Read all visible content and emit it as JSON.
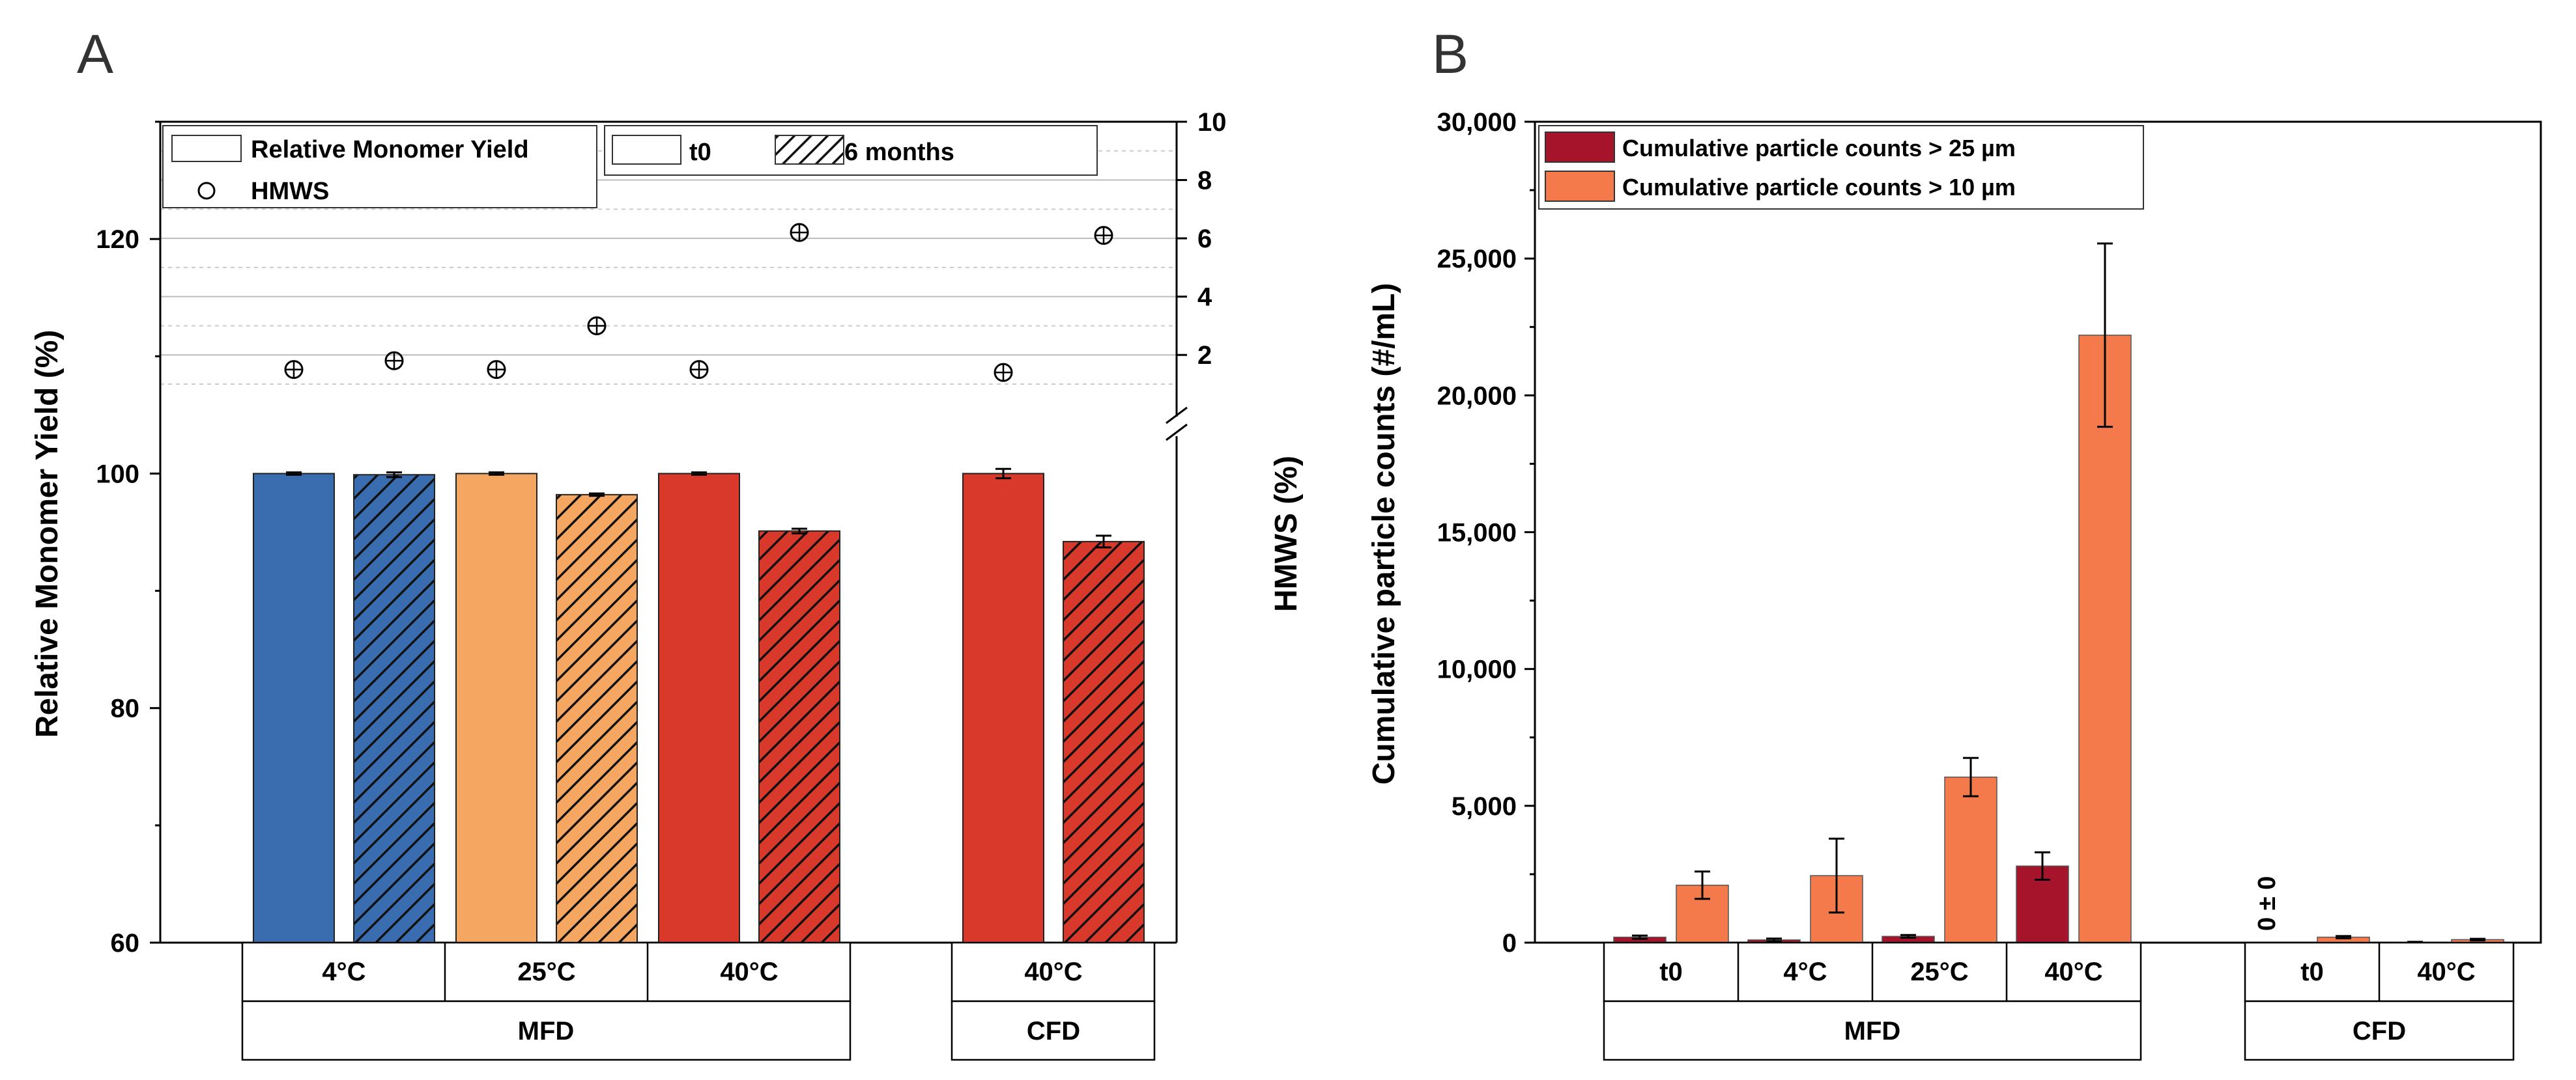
{
  "panel_a": {
    "letter": "A",
    "ylabel": "Relative Monomer Yield (%)",
    "y2label": "HMWS (%)",
    "yticks": [
      "60",
      "80",
      "100",
      "120"
    ],
    "y2ticks": [
      "2",
      "4",
      "6",
      "8",
      "10"
    ],
    "legend": {
      "bar_label": "Relative Monomer Yield",
      "marker_label": "HMWS",
      "t0_label": "t0",
      "month_label": "6 months"
    },
    "x_levels": {
      "temperatures": [
        "4°C",
        "25°C",
        "40°C",
        "40°C"
      ],
      "groups": [
        "MFD",
        "CFD"
      ]
    }
  },
  "panel_b": {
    "letter": "B",
    "ylabel": "Cumulative particle counts (#/mL)",
    "yticks": [
      "0",
      "5,000",
      "10,000",
      "15,000",
      "20,000",
      "25,000",
      "30,000"
    ],
    "legend": {
      "series_25": "Cumulative particle counts > 25 µm",
      "series_10": "Cumulative particle counts > 10 µm"
    },
    "annotation": "0 ± 0",
    "x_levels": {
      "conditions": [
        "t0",
        "4°C",
        "25°C",
        "40°C",
        "t0",
        "40°C"
      ],
      "groups": [
        "MFD",
        "CFD"
      ]
    }
  },
  "chart_data": [
    {
      "type": "bar",
      "title": "",
      "xlabel": "",
      "ylabel": "Relative Monomer Yield (%)",
      "ylim": [
        60,
        130
      ],
      "categories": [
        "MFD 4°C",
        "MFD 25°C",
        "MFD 40°C",
        "CFD 40°C"
      ],
      "series": [
        {
          "name": "t0",
          "values": [
            100.0,
            100.0,
            100.0,
            100.0
          ],
          "errors": [
            0.1,
            0.1,
            0.1,
            0.4
          ]
        },
        {
          "name": "6 months",
          "values": [
            99.9,
            98.2,
            95.1,
            94.2
          ],
          "errors": [
            0.2,
            0.1,
            0.2,
            0.5
          ]
        }
      ],
      "colors": [
        "#3A6DAF",
        "#F5A660",
        "#D9392B",
        "#D9392B"
      ],
      "secondary_axis": {
        "label": "HMWS (%)",
        "ylim": [
          0,
          10
        ],
        "visible_range": [
          1.0,
          10
        ],
        "series": [
          {
            "name": "HMWS t0",
            "values": [
              1.5,
              1.5,
              1.5,
              1.4
            ]
          },
          {
            "name": "HMWS 6 months",
            "values": [
              1.8,
              3.0,
              6.2,
              6.1
            ]
          }
        ]
      }
    },
    {
      "type": "bar",
      "title": "",
      "xlabel": "",
      "ylabel": "Cumulative particle counts (#/mL)",
      "ylim": [
        0,
        30000
      ],
      "categories": [
        "MFD t0",
        "MFD 4°C",
        "MFD 25°C",
        "MFD 40°C",
        "CFD t0",
        "CFD 40°C"
      ],
      "series": [
        {
          "name": "Cumulative particle counts > 25 µm",
          "values": [
            200,
            100,
            230,
            2800,
            0,
            20
          ],
          "errors": [
            60,
            50,
            50,
            500,
            0,
            10
          ]
        },
        {
          "name": "Cumulative particle counts > 10 µm",
          "values": [
            2100,
            2450,
            6050,
            22200,
            200,
            110
          ],
          "errors": [
            500,
            1350,
            700,
            3350,
            40,
            30
          ]
        }
      ],
      "colors": {
        "series_25": "#A6142B",
        "series_10": "#F47A4B"
      }
    }
  ]
}
